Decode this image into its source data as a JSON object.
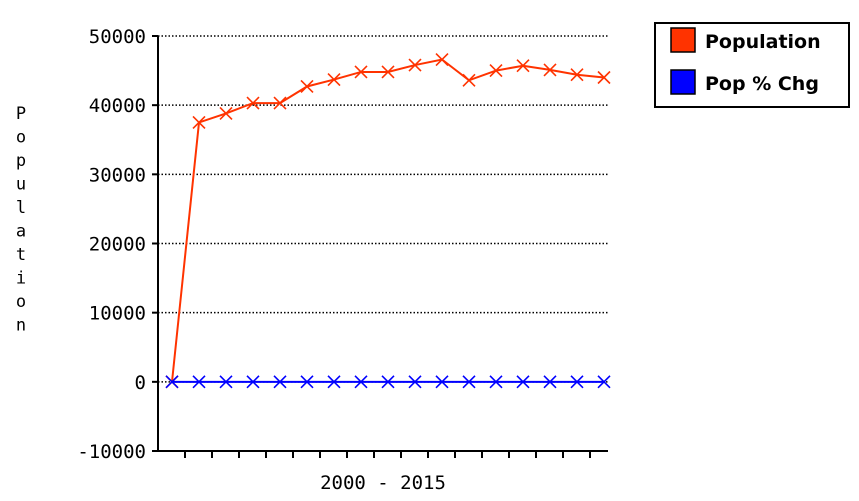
{
  "chart_data": {
    "type": "line",
    "title": "",
    "xlabel": "2000 - 2015",
    "ylabel": "Population",
    "ylim": [
      -10000,
      50000
    ],
    "yticks": [
      "50000",
      "40000",
      "30000",
      "20000",
      "10000",
      "0",
      "-10000"
    ],
    "x_points": 17,
    "grid": "horizontal dotted",
    "legend_position": "top-right",
    "series": [
      {
        "name": "Population",
        "color": "#ff3300",
        "values": [
          0,
          37500,
          38800,
          40300,
          40300,
          42700,
          43700,
          44800,
          44800,
          45800,
          46600,
          43600,
          45000,
          45700,
          45100,
          44400,
          44000
        ]
      },
      {
        "name": "Pop % Chg",
        "color": "#0000ff",
        "values": [
          0,
          0,
          0,
          0,
          0,
          0,
          0,
          0,
          0,
          0,
          0,
          0,
          0,
          0,
          0,
          0,
          0
        ]
      }
    ]
  }
}
